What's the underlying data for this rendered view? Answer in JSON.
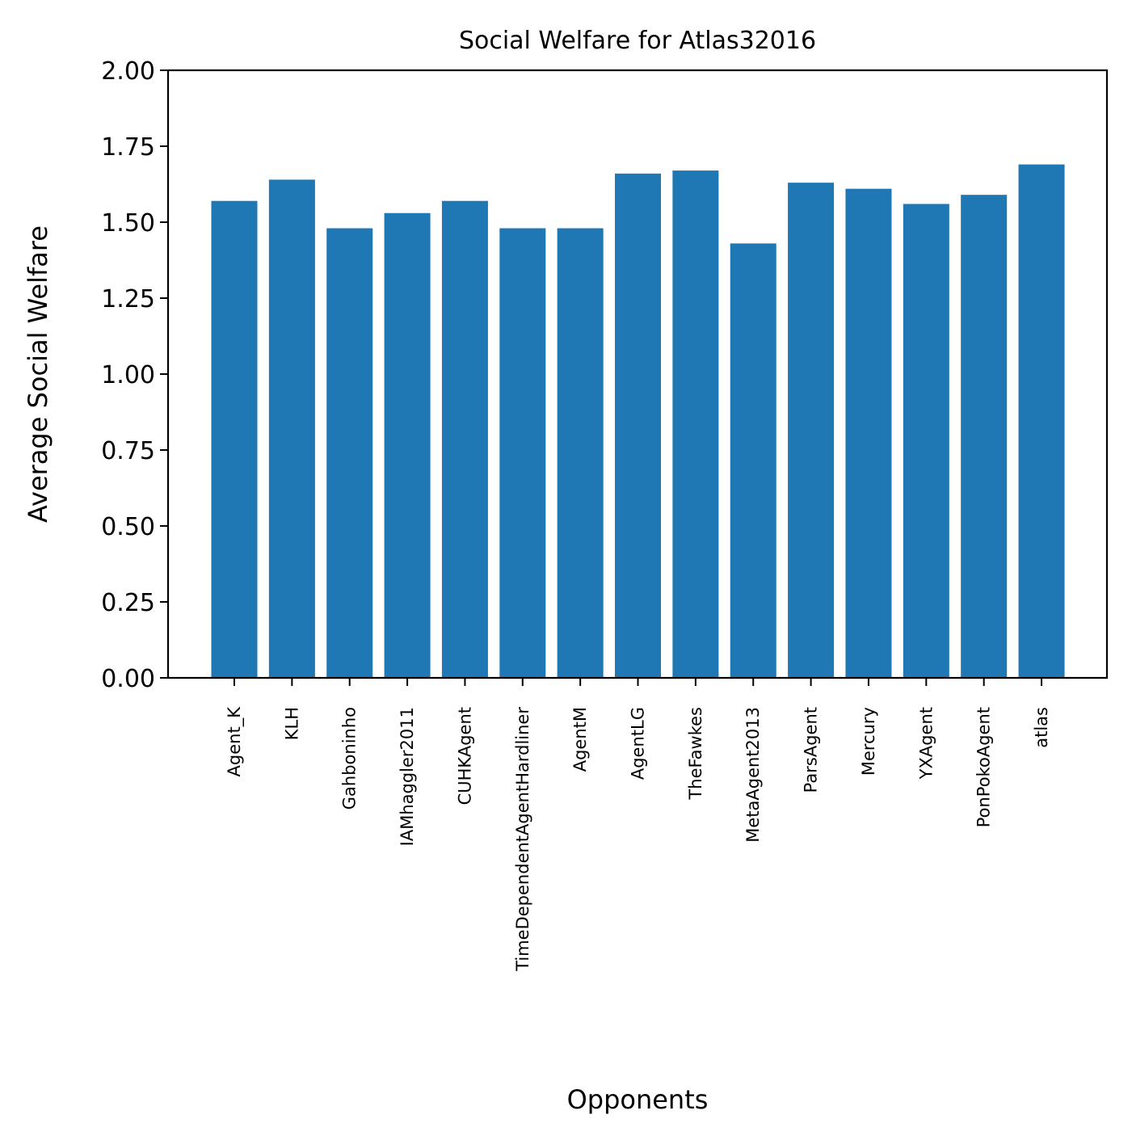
{
  "chart_data": {
    "type": "bar",
    "title": "Social Welfare for Atlas32016",
    "xlabel": "Opponents",
    "ylabel": "Average Social Welfare",
    "ylim": [
      0,
      2
    ],
    "yticks": [
      "0.00",
      "0.25",
      "0.50",
      "0.75",
      "1.00",
      "1.25",
      "1.50",
      "1.75",
      "2.00"
    ],
    "grid": false,
    "bar_color": "#1f77b4",
    "categories": [
      "Agent_K",
      "KLH",
      "Gahboninho",
      "IAMhaggler2011",
      "CUHKAgent",
      "TimeDependentAgentHardliner",
      "AgentM",
      "AgentLG",
      "TheFawkes",
      "MetaAgent2013",
      "ParsAgent",
      "Mercury",
      "YXAgent",
      "PonPokoAgent",
      "atlas"
    ],
    "values": [
      1.57,
      1.64,
      1.48,
      1.53,
      1.57,
      1.48,
      1.48,
      1.66,
      1.67,
      1.43,
      1.63,
      1.61,
      1.56,
      1.59,
      1.69
    ]
  }
}
